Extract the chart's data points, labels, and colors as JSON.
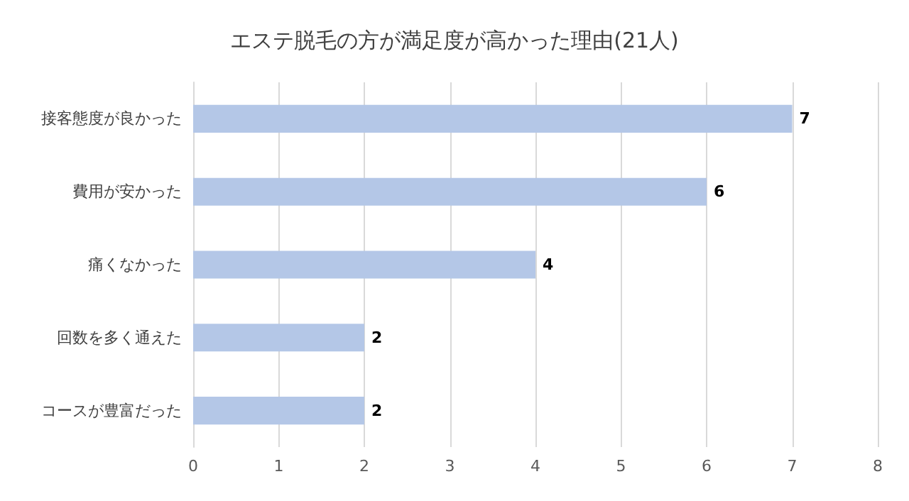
{
  "chart_data": {
    "type": "bar",
    "orientation": "horizontal",
    "title": "エステ脱毛の方が満足度が高かった理由(21人)",
    "categories": [
      "接客態度が良かった",
      "費用が安かった",
      "痛くなかった",
      "回数を多く通えた",
      "コースが豊富だった"
    ],
    "values": [
      7,
      6,
      4,
      2,
      2
    ],
    "color": "#b4c7e7",
    "xlim": [
      0,
      8
    ],
    "xticks": [
      0,
      1,
      2,
      3,
      4,
      5,
      6,
      7,
      8
    ],
    "grid": "x",
    "data_labels": true
  }
}
